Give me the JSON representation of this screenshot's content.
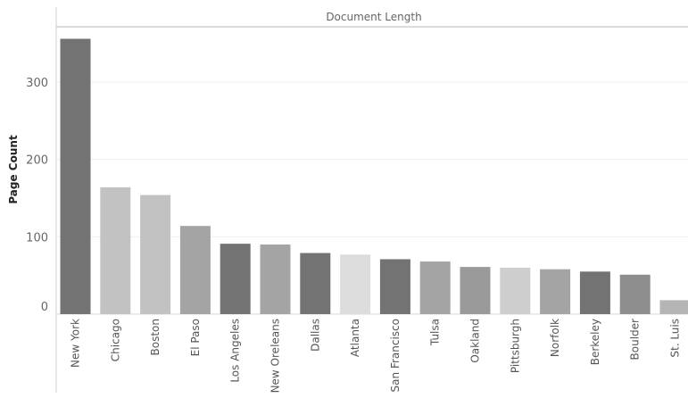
{
  "chart_data": {
    "type": "bar",
    "title": "Document Length",
    "xlabel": "",
    "ylabel": "Page Count",
    "ylim": [
      0,
      380
    ],
    "yticks": [
      0,
      100,
      200,
      300
    ],
    "grid": true,
    "categories": [
      "New York",
      "Chicago",
      "Boston",
      "El Paso",
      "Los Angeles",
      "New Oreleans",
      "Dallas",
      "Atlanta",
      "San Francisco",
      "Tulsa",
      "Oakland",
      "Pittsburgh",
      "Norfolk",
      "Berkeley",
      "Boulder",
      "St. Luis"
    ],
    "values": [
      356,
      164,
      154,
      114,
      91,
      90,
      79,
      77,
      71,
      68,
      61,
      60,
      58,
      55,
      51,
      18
    ],
    "colors": [
      "#737373",
      "#c2c2c2",
      "#c2c2c2",
      "#a4a4a4",
      "#737373",
      "#a4a4a4",
      "#737373",
      "#dcdcdc",
      "#737373",
      "#a4a4a4",
      "#9a9a9a",
      "#cecece",
      "#a4a4a4",
      "#737373",
      "#8e8e8e",
      "#b5b5b5"
    ]
  }
}
